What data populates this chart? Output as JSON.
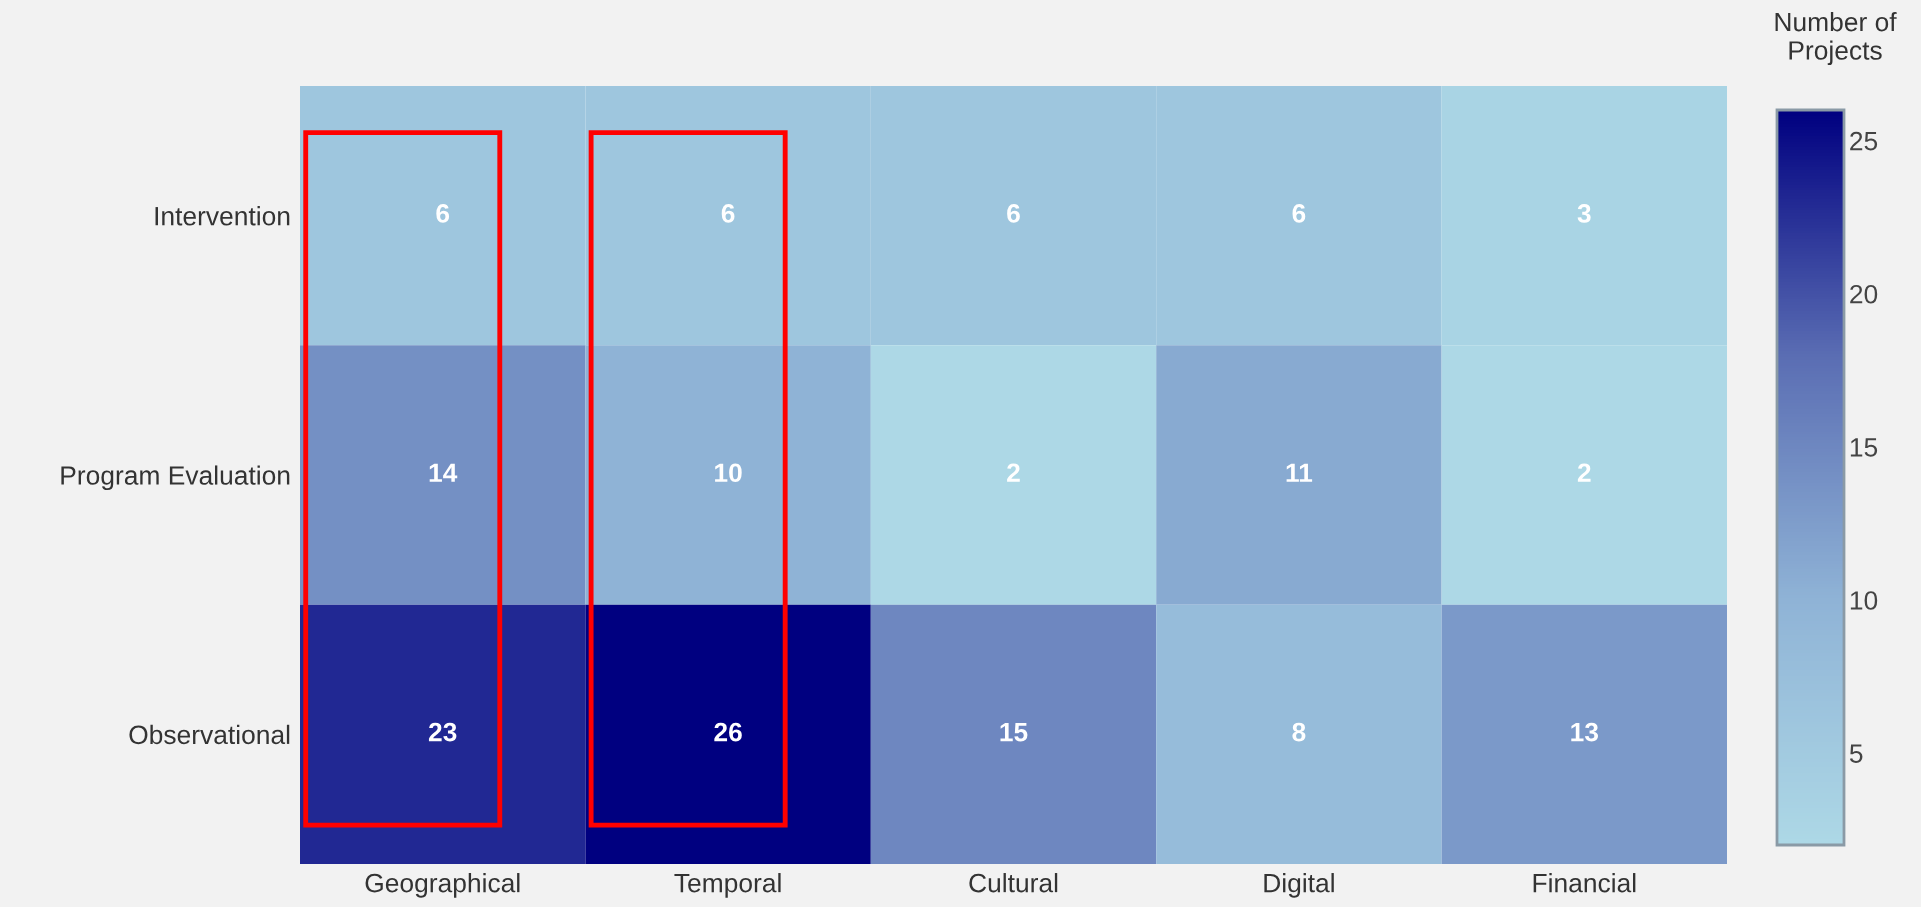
{
  "chart_data": {
    "type": "heatmap",
    "clabel": "Number of\nProjects",
    "categories": [
      "Geographical",
      "Temporal",
      "Cultural",
      "Digital",
      "Financial"
    ],
    "y_categories": [
      "Intervention",
      "Program Evaluation",
      "Observational"
    ],
    "cells": [
      [
        6,
        6,
        6,
        6,
        3
      ],
      [
        14,
        10,
        2,
        11,
        2
      ],
      [
        23,
        26,
        15,
        8,
        13
      ]
    ],
    "data_labels": true,
    "clim": [
      2,
      26
    ],
    "cticks": [
      5,
      10,
      15,
      20,
      25
    ]
  }
}
